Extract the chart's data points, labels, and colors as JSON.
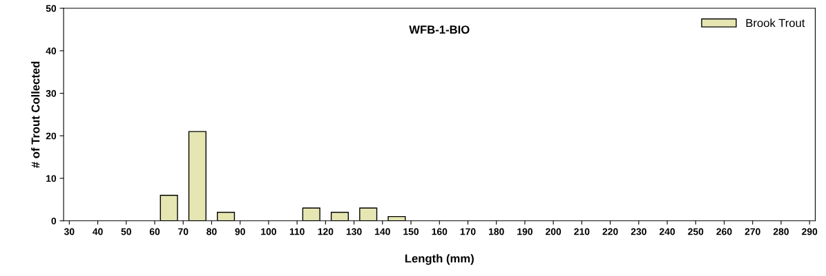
{
  "chart_data": {
    "type": "histogram",
    "title": "WFB-1-BIO",
    "xlabel": "Length (mm)",
    "ylabel": "# of Trout Collected",
    "bins": [
      30,
      40,
      50,
      60,
      70,
      80,
      90,
      100,
      110,
      120,
      130,
      140,
      150,
      160,
      170,
      180,
      190,
      200,
      210,
      220,
      230,
      240,
      250,
      260,
      270,
      280,
      290
    ],
    "series": [
      {
        "name": "Brook Trout",
        "color": "#e6e6b3",
        "values": [
          0,
          0,
          0,
          6,
          21,
          2,
          0,
          0,
          3,
          2,
          3,
          1,
          0,
          0,
          0,
          0,
          0,
          0,
          0,
          0,
          0,
          0,
          0,
          0,
          0,
          0
        ]
      }
    ],
    "xlim": [
      28,
      292
    ],
    "xticks": [
      30,
      40,
      50,
      60,
      70,
      80,
      90,
      100,
      110,
      120,
      130,
      140,
      150,
      160,
      170,
      180,
      190,
      200,
      210,
      220,
      230,
      240,
      250,
      260,
      270,
      280,
      290
    ],
    "ylim": [
      0,
      50
    ],
    "yticks": [
      0,
      10,
      20,
      30,
      40,
      50
    ],
    "grid": false,
    "legend": "top right"
  }
}
